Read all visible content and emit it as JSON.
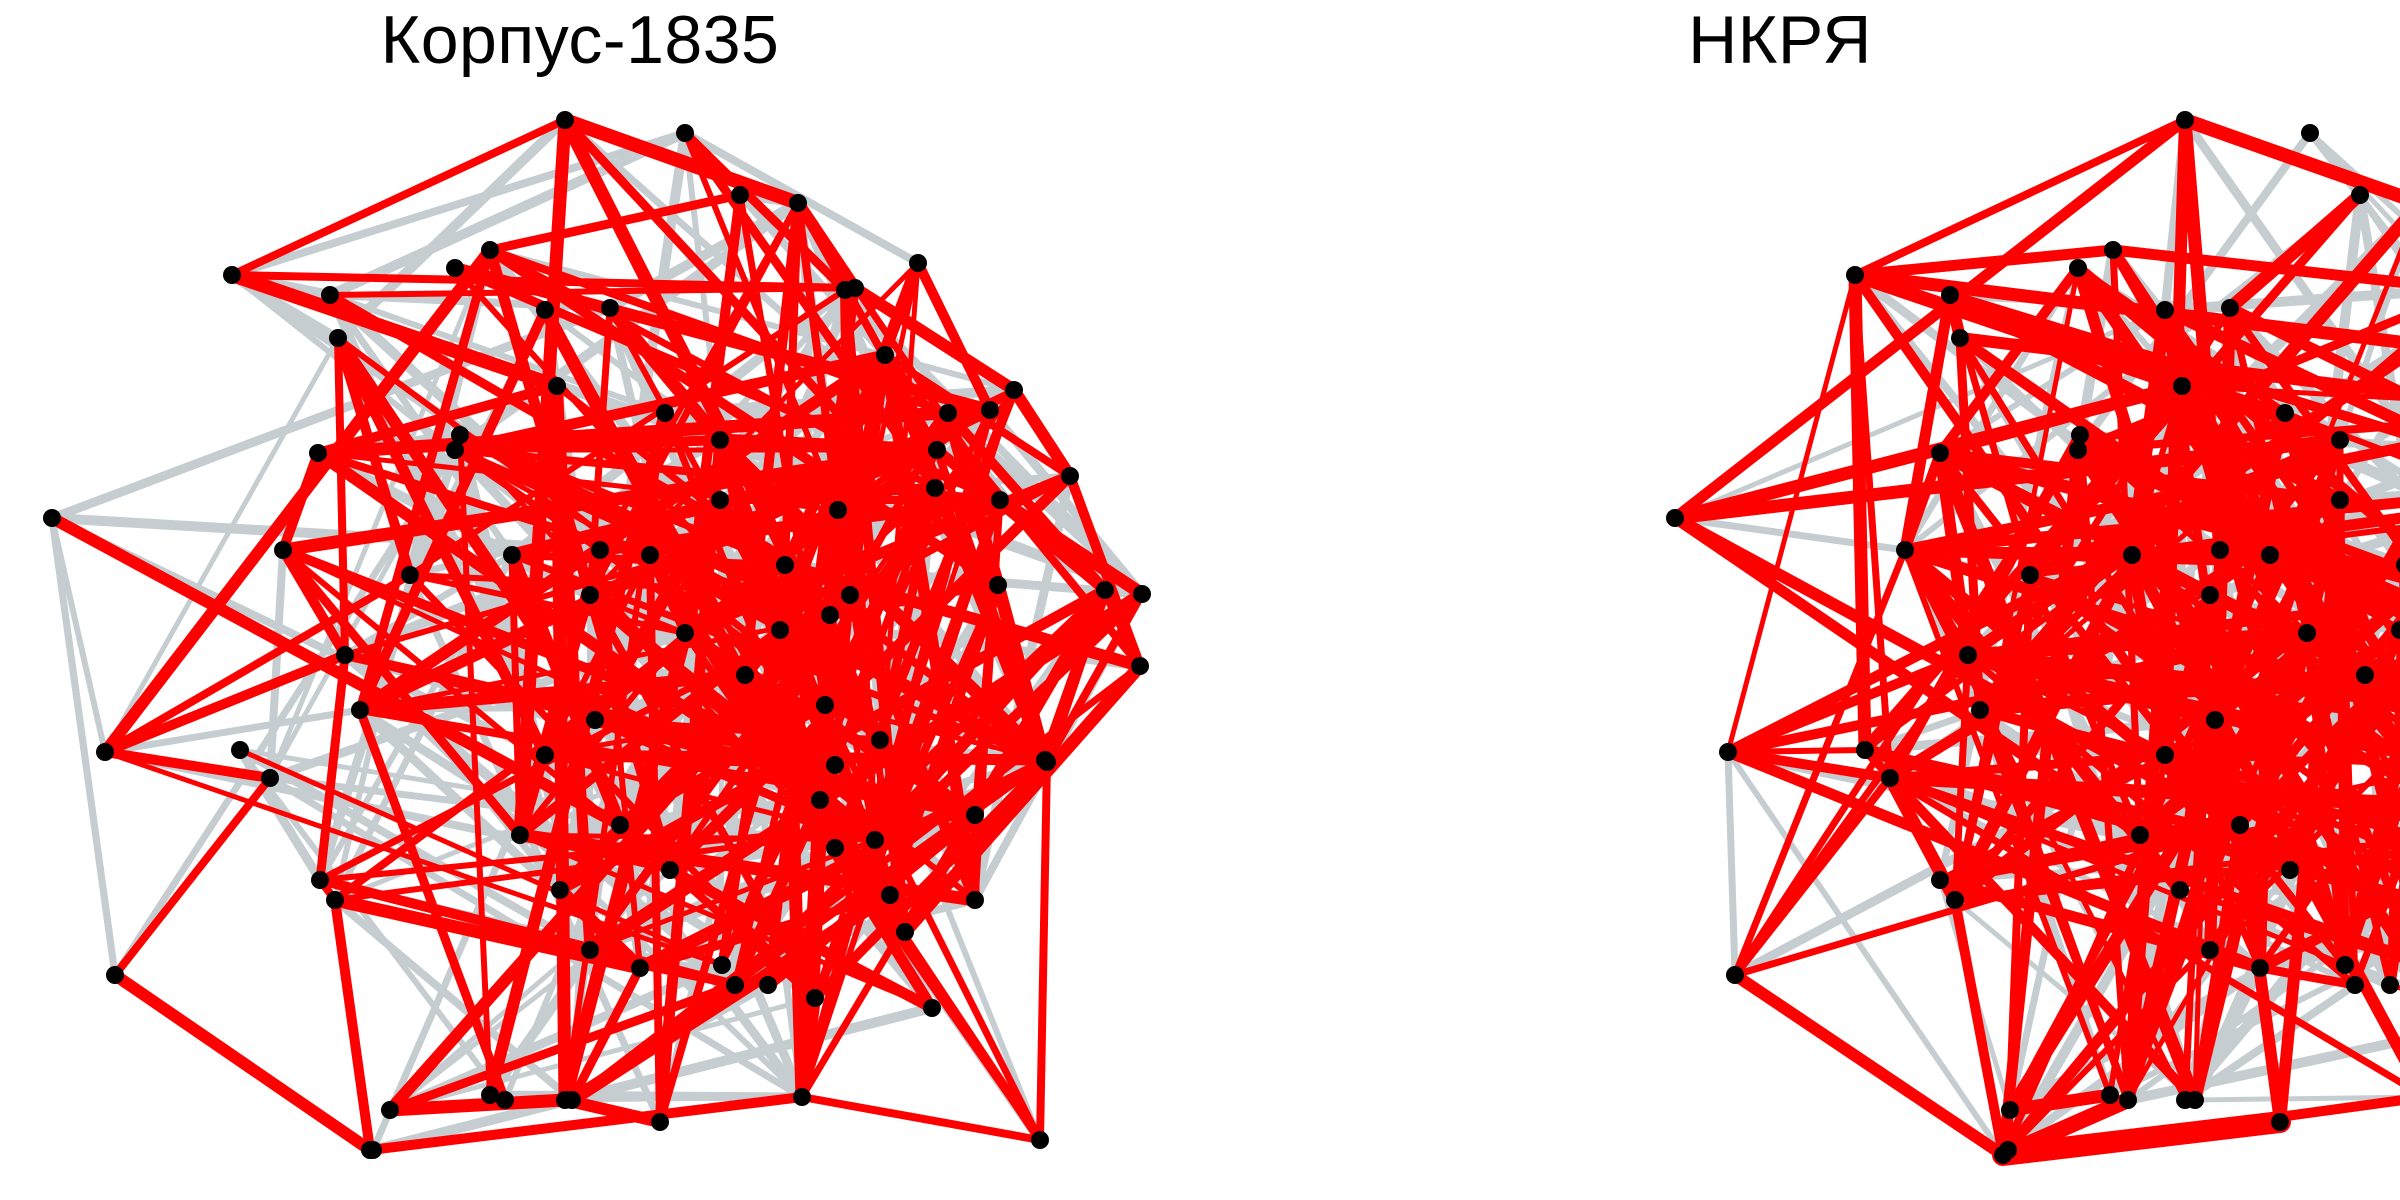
{
  "panels": [
    {
      "id": "left",
      "title": "Корпус-1835"
    },
    {
      "id": "right",
      "title": "НКРЯ"
    }
  ],
  "colors": {
    "background": "#ffffff",
    "node": "#000000",
    "edge_background": "#c5cdd1",
    "edge_highlight": "#ff0000"
  }
}
